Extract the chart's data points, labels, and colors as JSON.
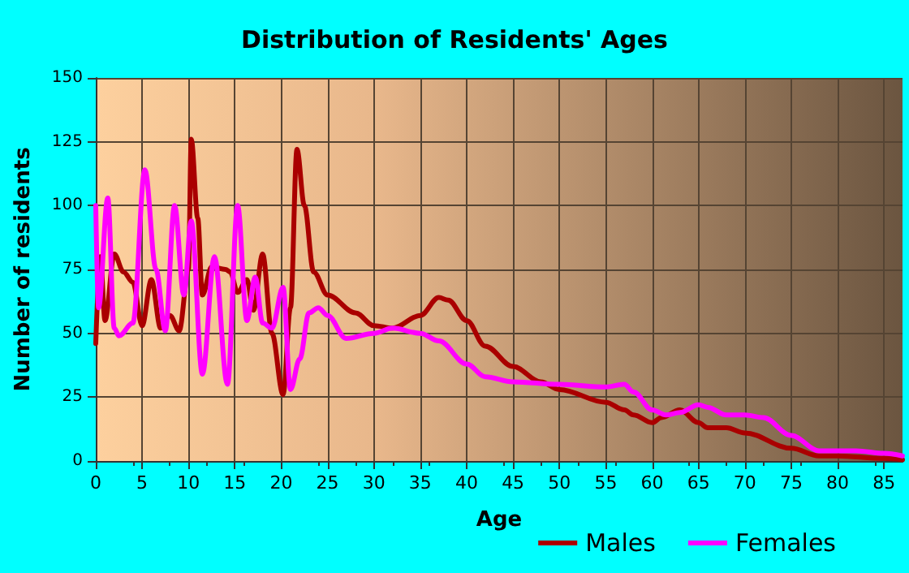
{
  "chart_data": {
    "type": "line",
    "title": "Distribution of Residents' Ages",
    "xlabel": "Age",
    "ylabel": "Number of residents",
    "xlim": [
      0,
      87
    ],
    "xticks": [
      0,
      5,
      10,
      15,
      20,
      25,
      30,
      35,
      40,
      45,
      50,
      55,
      60,
      65,
      70,
      75,
      80,
      85
    ],
    "ylim": [
      0,
      150
    ],
    "yticks": [
      0,
      25,
      50,
      75,
      100,
      125,
      150
    ],
    "grid": true,
    "legend": "bottom right",
    "marker": "none",
    "line_style": "solid",
    "series": [
      {
        "name": "Males",
        "color": "#aa0000",
        "x": [
          0,
          0.5,
          1,
          2,
          3,
          4,
          5,
          6,
          7,
          8,
          9,
          10,
          10.3,
          11,
          11.5,
          12.5,
          14,
          14.5,
          15.3,
          16.3,
          17,
          18,
          19,
          20.2,
          21,
          21.7,
          22.5,
          23.5,
          25,
          28,
          30,
          32,
          35,
          37,
          38,
          40,
          42,
          45,
          48,
          50,
          55,
          57,
          58,
          60,
          61,
          63,
          65,
          66,
          68,
          70,
          75,
          78,
          80,
          85,
          87
        ],
        "values": [
          46,
          80,
          55,
          81,
          74,
          70,
          53,
          71,
          52,
          57,
          51,
          75,
          126,
          95,
          65,
          76,
          75,
          74,
          66,
          71,
          59,
          81,
          50,
          26,
          60,
          122,
          100,
          74,
          65,
          58,
          53,
          52,
          57,
          64,
          63,
          55,
          45,
          37,
          31,
          28,
          23,
          20,
          18,
          15,
          17,
          20,
          15,
          13,
          13,
          11,
          5,
          2,
          2,
          1,
          0.5
        ]
      },
      {
        "name": "Females",
        "color": "#ff00ff",
        "x": [
          0,
          0.3,
          1.3,
          2,
          2.5,
          4,
          5.3,
          6.5,
          7.5,
          8.5,
          9.5,
          10.3,
          11.5,
          12.8,
          14.2,
          15.3,
          16.3,
          17.2,
          18,
          19,
          20.2,
          21,
          22,
          23,
          24,
          25,
          27,
          30,
          32,
          35,
          37,
          40,
          42,
          45,
          50,
          55,
          57,
          58,
          60,
          61.5,
          63,
          65,
          66,
          68,
          70,
          72,
          75,
          78,
          82,
          85,
          87
        ],
        "values": [
          100,
          60,
          103,
          52,
          49,
          54,
          114,
          75,
          51,
          100,
          65,
          94,
          34,
          80,
          30,
          100,
          55,
          72,
          54,
          52,
          68,
          28,
          40,
          58,
          60,
          57,
          48,
          50,
          52,
          50,
          47,
          38,
          33,
          31,
          30,
          29,
          30,
          27,
          20,
          18,
          19,
          22,
          21,
          18,
          18,
          17,
          10,
          4,
          4,
          3,
          2
        ]
      }
    ]
  }
}
